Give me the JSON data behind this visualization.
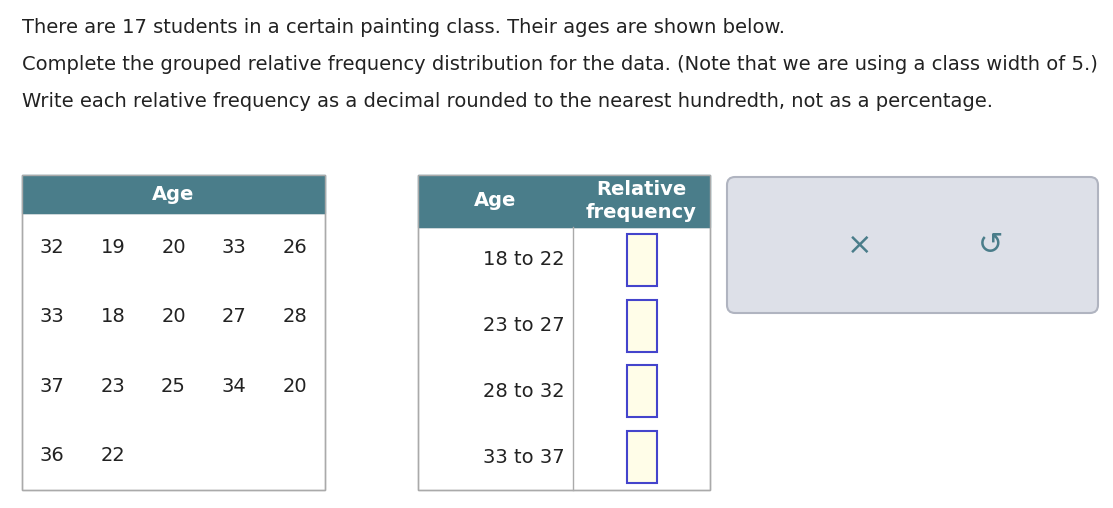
{
  "title_line1": "There are 17 students in a certain painting class. Their ages are shown below.",
  "title_line2": "Complete the grouped relative frequency distribution for the data. (Note that we are using a class width of 5.)",
  "title_line3": "Write each relative frequency as a decimal rounded to the nearest hundredth, not as a percentage.",
  "age_data": [
    [
      32,
      19,
      20,
      33,
      26
    ],
    [
      33,
      18,
      20,
      27,
      28
    ],
    [
      37,
      23,
      25,
      34,
      20
    ],
    [
      36,
      22,
      null,
      null,
      null
    ]
  ],
  "age_header": "Age",
  "freq_table_age_header": "Age",
  "freq_table_freq_header": "Relative\nfrequency",
  "freq_rows": [
    "18 to 22",
    "23 to 27",
    "28 to 32",
    "33 to 37"
  ],
  "header_bg": "#4a7d8a",
  "header_text_color": "#ffffff",
  "table_border": "#aaaaaa",
  "input_box_border": "#4444cc",
  "input_box_fill": "#fffde8",
  "button_bg": "#dde0e8",
  "button_border": "#b0b4c0",
  "button_text_color": "#4a7d8a",
  "text_color": "#222222",
  "font_size_body": 14,
  "font_size_table": 14,
  "font_size_header": 13
}
